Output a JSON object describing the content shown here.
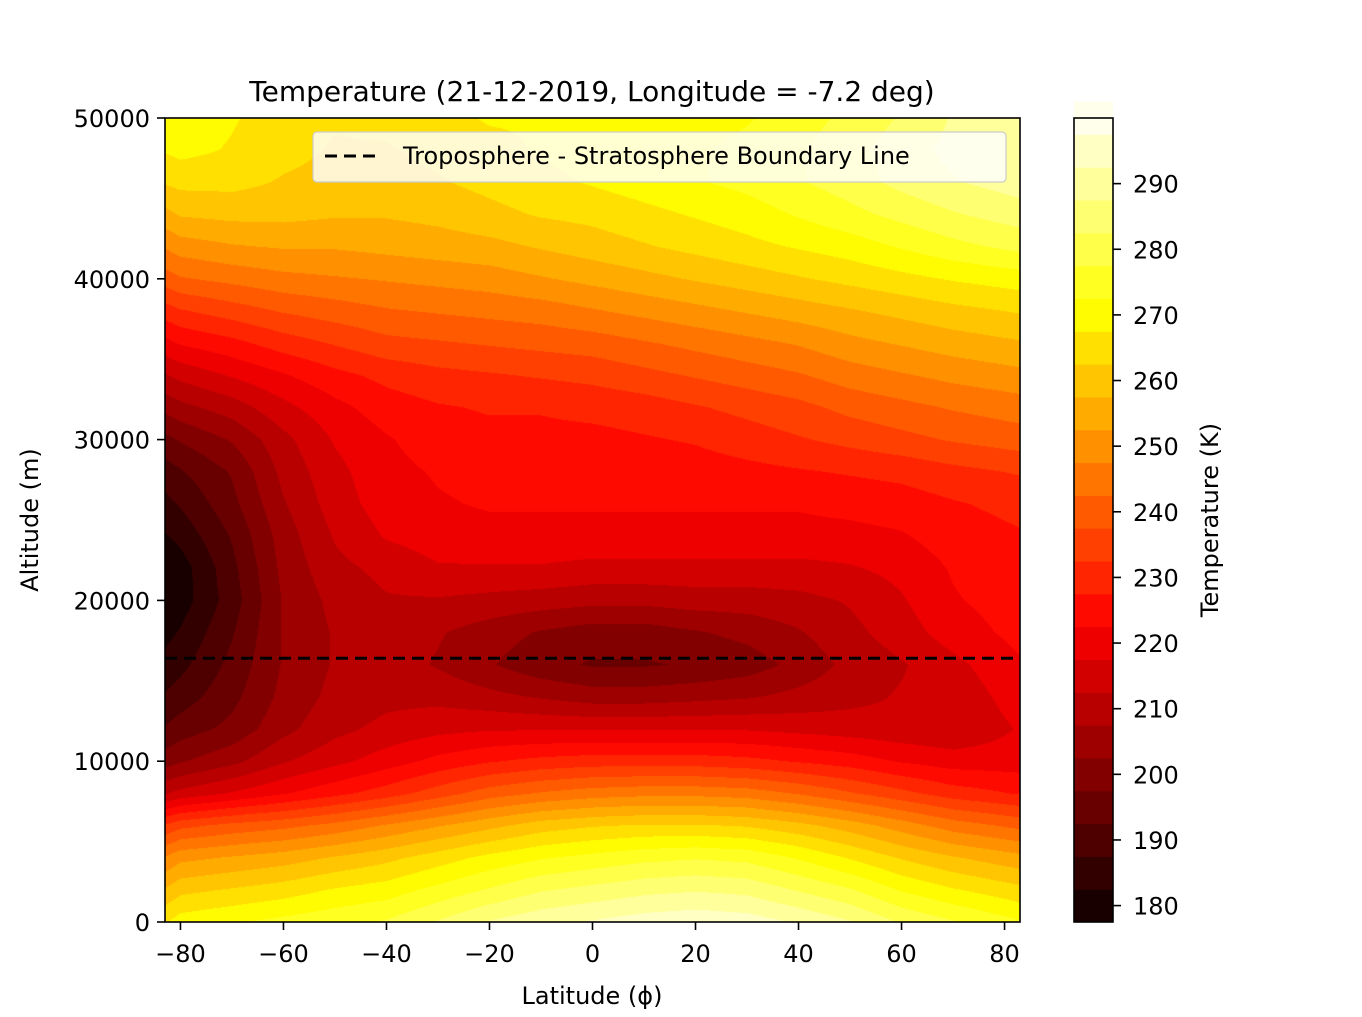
{
  "chart_data": {
    "type": "heatmap",
    "subtype": "filled-contour",
    "title": "Temperature (21-12-2019, Longitude = -7.2 deg)",
    "xlabel": "Latitude (ϕ)",
    "ylabel": "Altitude (m)",
    "xlim": [
      -83,
      83
    ],
    "ylim": [
      0,
      50000
    ],
    "xticks": [
      -80,
      -60,
      -40,
      -20,
      0,
      20,
      40,
      60,
      80
    ],
    "xtick_labels": [
      "−80",
      "−60",
      "−40",
      "−20",
      "0",
      "20",
      "40",
      "60",
      "80"
    ],
    "yticks": [
      0,
      10000,
      20000,
      30000,
      40000,
      50000
    ],
    "ytick_labels": [
      "0",
      "10000",
      "20000",
      "30000",
      "40000",
      "50000"
    ],
    "colormap": "hot",
    "colorbar": {
      "label": "Temperature (K)",
      "min": 177.5,
      "max": 300,
      "level_step": 5,
      "ticks": [
        180,
        190,
        200,
        210,
        220,
        230,
        240,
        250,
        260,
        270,
        280,
        290
      ]
    },
    "temperature_grid": {
      "latitudes": [
        -83,
        -80,
        -70,
        -60,
        -50,
        -40,
        -30,
        -20,
        -10,
        0,
        10,
        20,
        30,
        40,
        50,
        60,
        70,
        83
      ],
      "altitudes": [
        0,
        2000,
        4000,
        6000,
        8000,
        10000,
        12000,
        14000,
        16000,
        18000,
        20000,
        22000,
        24000,
        26000,
        28000,
        30000,
        32000,
        34000,
        36000,
        38000,
        40000,
        42000,
        44000,
        46000,
        48000,
        50000
      ],
      "values": [
        [
          267,
          270,
          272,
          274,
          276,
          278,
          283,
          288,
          291,
          293,
          295,
          296,
          295,
          292,
          288,
          282,
          278,
          273
        ],
        [
          258,
          261,
          263,
          265,
          268,
          270,
          274,
          278,
          282,
          284,
          286,
          287,
          286,
          282,
          278,
          272,
          268,
          264
        ],
        [
          248,
          251,
          253,
          255,
          258,
          261,
          265,
          269,
          272,
          274,
          276,
          277,
          276,
          272,
          267,
          262,
          258,
          254
        ],
        [
          233,
          236,
          239,
          241,
          244,
          248,
          252,
          256,
          260,
          262,
          263,
          263,
          262,
          259,
          255,
          250,
          245,
          241
        ],
        [
          212,
          214,
          218,
          222,
          226,
          230,
          235,
          240,
          243,
          245,
          246,
          246,
          245,
          242,
          238,
          234,
          230,
          227
        ],
        [
          200,
          202,
          206,
          212,
          216,
          220,
          224,
          227,
          229,
          230,
          230,
          230,
          229,
          227,
          225,
          222,
          220,
          220
        ],
        [
          193,
          195,
          199,
          206,
          211,
          214,
          216,
          217,
          217,
          217,
          217,
          217,
          217,
          216,
          215,
          214,
          213,
          218
        ],
        [
          188,
          190,
          196,
          204,
          209,
          211,
          211,
          209,
          207,
          205,
          205,
          206,
          207,
          209,
          211,
          213,
          214,
          220
        ],
        [
          184,
          186,
          194,
          203,
          208,
          210,
          207,
          203,
          199,
          197,
          197,
          198,
          200,
          204,
          209,
          212,
          216,
          222
        ],
        [
          181,
          183,
          192,
          203,
          208,
          210,
          208,
          205,
          202,
          200,
          200,
          202,
          204,
          207,
          211,
          215,
          220,
          224
        ],
        [
          178,
          180,
          190,
          203,
          209,
          212,
          212,
          211,
          210,
          209,
          209,
          210,
          210,
          211,
          213,
          217,
          222,
          225
        ],
        [
          178,
          180,
          191,
          204,
          211,
          214,
          217,
          217,
          217,
          216,
          216,
          216,
          216,
          216,
          217,
          219,
          223,
          226
        ],
        [
          182,
          184,
          193,
          205,
          213,
          218,
          220,
          221,
          221,
          221,
          221,
          221,
          221,
          221,
          221,
          222,
          225,
          227
        ],
        [
          186,
          188,
          196,
          207,
          215,
          220,
          222,
          223,
          223,
          223,
          223,
          223,
          223,
          223,
          224,
          225,
          227,
          229
        ],
        [
          190,
          192,
          198,
          209,
          216,
          221,
          223,
          224,
          224,
          224,
          224,
          225,
          226,
          227,
          228,
          229,
          231,
          233
        ],
        [
          196,
          198,
          203,
          211,
          218,
          222,
          225,
          226,
          226,
          226,
          227,
          228,
          230,
          232,
          234,
          236,
          238,
          240
        ],
        [
          204,
          206,
          210,
          216,
          221,
          225,
          227,
          228,
          228,
          229,
          230,
          232,
          234,
          236,
          239,
          241,
          243,
          245
        ],
        [
          212,
          214,
          218,
          222,
          226,
          229,
          231,
          232,
          233,
          234,
          236,
          238,
          240,
          242,
          245,
          247,
          249,
          251
        ],
        [
          221,
          223,
          226,
          230,
          233,
          236,
          237,
          238,
          239,
          240,
          242,
          244,
          246,
          248,
          251,
          253,
          255,
          257
        ],
        [
          230,
          232,
          235,
          238,
          240,
          242,
          243,
          244,
          245,
          247,
          249,
          251,
          253,
          255,
          257,
          259,
          261,
          263
        ],
        [
          240,
          242,
          244,
          246,
          247,
          248,
          249,
          250,
          252,
          254,
          256,
          258,
          260,
          262,
          264,
          266,
          268,
          270
        ],
        [
          248,
          250,
          252,
          253,
          253,
          254,
          255,
          256,
          258,
          260,
          262,
          264,
          266,
          268,
          270,
          273,
          276,
          279
        ],
        [
          256,
          258,
          259,
          259,
          258,
          258,
          259,
          261,
          263,
          264,
          266,
          268,
          270,
          273,
          276,
          279,
          282,
          285
        ],
        [
          263,
          264,
          264,
          262,
          261,
          260,
          262,
          264,
          266,
          268,
          270,
          272,
          274,
          277,
          280,
          284,
          287,
          290
        ],
        [
          268,
          269,
          267,
          264,
          262,
          262,
          264,
          266,
          268,
          270,
          271,
          272,
          274,
          277,
          281,
          285,
          289,
          292
        ],
        [
          271,
          271,
          268,
          265,
          263,
          264,
          266,
          268,
          268,
          269,
          270,
          270,
          272,
          275,
          279,
          283,
          288,
          291
        ]
      ]
    },
    "boundary_line": {
      "label": "Troposphere - Stratosphere Boundary Line",
      "altitude": 16400,
      "style": "dashed",
      "color": "#000000"
    },
    "legend_position": "top-right",
    "grid": false
  }
}
